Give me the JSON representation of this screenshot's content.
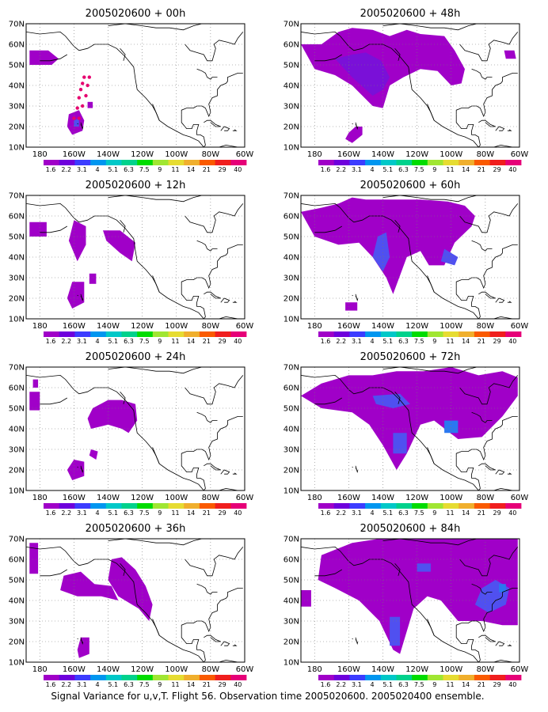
{
  "figure": {
    "caption": "Signal Variance for u,v,T. Flight 56. Observation time 2005020600. 2005020400 ensemble."
  },
  "axes": {
    "lon_ticks": [
      "180",
      "160W",
      "140W",
      "120W",
      "100W",
      "80W",
      "60W"
    ],
    "lat_ticks": [
      "70N",
      "60N",
      "50N",
      "40N",
      "30N",
      "20N",
      "10N"
    ],
    "lon_range": [
      -188,
      -60
    ],
    "lat_range": [
      10,
      70
    ],
    "grid": "dotted"
  },
  "colorbar": {
    "labels": [
      "1.6",
      "2.2",
      "3.1",
      "4",
      "5.1",
      "6.3",
      "7.5",
      "9",
      "11",
      "14",
      "21",
      "29",
      "40"
    ],
    "colors": [
      "#a000c8",
      "#6e00dc",
      "#3c3cff",
      "#0096f0",
      "#00c8c8",
      "#00d28c",
      "#00dc00",
      "#a0e632",
      "#e6dc32",
      "#f0af2d",
      "#fa5a00",
      "#f01e1e",
      "#e60078"
    ]
  },
  "panels": [
    {
      "title": "2005020600 + 00h",
      "regions": [
        {
          "level": 0,
          "lon": [
            -186,
            -175,
            -169,
            -173,
            -186
          ],
          "lat": [
            57,
            57,
            53,
            50,
            50
          ]
        },
        {
          "level": 0,
          "lon": [
            -163,
            -157,
            -154,
            -155,
            -161,
            -164
          ],
          "lat": [
            26,
            28,
            23,
            18,
            16,
            20
          ]
        },
        {
          "level": 2,
          "lon": [
            -160,
            -157,
            -157,
            -160
          ],
          "lat": [
            23,
            24,
            20,
            20
          ]
        },
        {
          "level": 0,
          "lon": [
            -152,
            -149,
            -149,
            -152
          ],
          "lat": [
            32,
            32,
            29,
            29
          ]
        }
      ],
      "tracks": [
        {
          "lon": [
            -160,
            -158,
            -157,
            -156,
            -155,
            -154
          ],
          "lat": [
            24,
            29,
            34,
            38,
            41,
            44
          ]
        },
        {
          "lon": [
            -157,
            -155,
            -153,
            -152,
            -151
          ],
          "lat": [
            24,
            30,
            35,
            40,
            44
          ]
        }
      ]
    },
    {
      "title": "2005020600 + 48h",
      "regions": [
        {
          "level": 0,
          "lon": [
            -188,
            -176,
            -166,
            -158,
            -146,
            -136,
            -126,
            -118,
            -104,
            -98,
            -92,
            -94,
            -100,
            -108,
            -118,
            -128,
            -136,
            -140,
            -146,
            -158,
            -168,
            -180
          ],
          "lat": [
            60,
            60,
            66,
            68,
            67,
            64,
            67,
            65,
            64,
            57,
            48,
            41,
            40,
            47,
            48,
            44,
            40,
            29,
            30,
            40,
            45,
            48
          ]
        },
        {
          "level": 1,
          "lon": [
            -168,
            -158,
            -150,
            -141,
            -136,
            -140,
            -146,
            -158
          ],
          "lat": [
            53,
            55,
            56,
            52,
            44,
            38,
            35,
            44
          ]
        },
        {
          "level": 0,
          "lon": [
            -156,
            -152,
            -152,
            -158,
            -162,
            -160
          ],
          "lat": [
            20,
            20,
            16,
            12,
            14,
            17
          ]
        },
        {
          "level": 0,
          "lon": [
            -69,
            -63,
            -62,
            -68
          ],
          "lat": [
            57,
            57,
            53,
            53
          ]
        }
      ],
      "tracks": []
    },
    {
      "title": "2005020600 + 12h",
      "regions": [
        {
          "level": 0,
          "lon": [
            -186,
            -176,
            -176,
            -186
          ],
          "lat": [
            57,
            57,
            50,
            50
          ]
        },
        {
          "level": 0,
          "lon": [
            -160,
            -153,
            -153,
            -158,
            -163
          ],
          "lat": [
            58,
            55,
            46,
            38,
            48
          ]
        },
        {
          "level": 0,
          "lon": [
            -143,
            -133,
            -124,
            -126,
            -133,
            -141
          ],
          "lat": [
            53,
            53,
            47,
            38,
            42,
            48
          ]
        },
        {
          "level": 0,
          "lon": [
            -161,
            -154,
            -154,
            -161,
            -164
          ],
          "lat": [
            28,
            28,
            18,
            15,
            20
          ]
        },
        {
          "level": 0,
          "lon": [
            -151,
            -147,
            -147,
            -151
          ],
          "lat": [
            32,
            32,
            27,
            27
          ]
        }
      ],
      "tracks": []
    },
    {
      "title": "2005020600 + 60h",
      "regions": [
        {
          "level": 0,
          "lon": [
            -188,
            -176,
            -166,
            -158,
            -150,
            -126,
            -118,
            -102,
            -92,
            -86,
            -88,
            -98,
            -104,
            -113,
            -118,
            -126,
            -134,
            -138,
            -146,
            -154,
            -166,
            -180
          ],
          "lat": [
            62,
            64,
            66,
            69,
            68,
            68,
            68,
            67,
            65,
            60,
            55,
            47,
            36,
            36,
            43,
            40,
            22,
            30,
            40,
            47,
            46,
            50
          ]
        },
        {
          "level": 2,
          "lon": [
            -143,
            -138,
            -136,
            -140,
            -146
          ],
          "lat": [
            50,
            52,
            40,
            33,
            40
          ]
        },
        {
          "level": 2,
          "lon": [
            -104,
            -96,
            -98,
            -106
          ],
          "lat": [
            44,
            40,
            36,
            38
          ]
        },
        {
          "level": 0,
          "lon": [
            -162,
            -155,
            -155,
            -162
          ],
          "lat": [
            18,
            18,
            14,
            14
          ]
        }
      ],
      "tracks": []
    },
    {
      "title": "2005020600 + 24h",
      "regions": [
        {
          "level": 0,
          "lon": [
            -186,
            -180,
            -180,
            -186
          ],
          "lat": [
            58,
            58,
            49,
            49
          ]
        },
        {
          "level": 0,
          "lon": [
            -184,
            -181,
            -181,
            -184
          ],
          "lat": [
            64,
            64,
            60,
            60
          ]
        },
        {
          "level": 0,
          "lon": [
            -149,
            -140,
            -132,
            -124,
            -123,
            -128,
            -132,
            -140,
            -150,
            -152
          ],
          "lat": [
            50,
            54,
            54,
            52,
            44,
            38,
            40,
            42,
            40,
            45
          ]
        },
        {
          "level": 0,
          "lon": [
            -160,
            -154,
            -154,
            -161,
            -164
          ],
          "lat": [
            25,
            24,
            17,
            15,
            20
          ]
        },
        {
          "level": 0,
          "lon": [
            -150,
            -146,
            -147,
            -151
          ],
          "lat": [
            30,
            29,
            25,
            27
          ]
        }
      ],
      "tracks": []
    },
    {
      "title": "2005020600 + 72h",
      "regions": [
        {
          "level": 0,
          "lon": [
            -188,
            -176,
            -160,
            -146,
            -132,
            -116,
            -100,
            -84,
            -70,
            -61,
            -61,
            -70,
            -82,
            -96,
            -110,
            -118,
            -126,
            -132,
            -140,
            -148,
            -158,
            -176
          ],
          "lat": [
            56,
            62,
            66,
            66,
            68,
            68,
            70,
            66,
            68,
            65,
            56,
            46,
            36,
            35,
            44,
            42,
            28,
            20,
            32,
            42,
            48,
            50
          ]
        },
        {
          "level": 2,
          "lon": [
            -146,
            -130,
            -124,
            -134,
            -144
          ],
          "lat": [
            56,
            57,
            52,
            50,
            52
          ]
        },
        {
          "level": 3,
          "lon": [
            -104,
            -96,
            -96,
            -104
          ],
          "lat": [
            44,
            44,
            38,
            38
          ]
        },
        {
          "level": 2,
          "lon": [
            -134,
            -126,
            -126,
            -134
          ],
          "lat": [
            38,
            38,
            28,
            28
          ]
        }
      ],
      "tracks": []
    },
    {
      "title": "2005020600 + 36h",
      "regions": [
        {
          "level": 0,
          "lon": [
            -186,
            -181,
            -181,
            -186
          ],
          "lat": [
            68,
            68,
            53,
            53
          ]
        },
        {
          "level": 0,
          "lon": [
            -166,
            -156,
            -148,
            -138,
            -134,
            -144,
            -158,
            -168
          ],
          "lat": [
            52,
            54,
            48,
            47,
            40,
            42,
            42,
            45
          ]
        },
        {
          "level": 0,
          "lon": [
            -138,
            -132,
            -124,
            -118,
            -114,
            -116,
            -122,
            -134,
            -140
          ],
          "lat": [
            60,
            61,
            55,
            47,
            38,
            30,
            36,
            42,
            50
          ]
        },
        {
          "level": 0,
          "lon": [
            -156,
            -151,
            -151,
            -157,
            -158
          ],
          "lat": [
            22,
            22,
            14,
            12,
            16
          ]
        }
      ],
      "tracks": []
    },
    {
      "title": "2005020600 + 84h",
      "regions": [
        {
          "level": 0,
          "lon": [
            -176,
            -158,
            -142,
            -126,
            -110,
            -92,
            -76,
            -61,
            -61,
            -70,
            -82,
            -96,
            -106,
            -114,
            -122,
            -130,
            -134,
            -142,
            -154,
            -168,
            -178
          ],
          "lat": [
            62,
            68,
            70,
            70,
            70,
            70,
            70,
            70,
            28,
            28,
            30,
            30,
            40,
            42,
            36,
            14,
            16,
            30,
            40,
            46,
            50
          ]
        },
        {
          "level": 0,
          "lon": [
            -188,
            -182,
            -182,
            -188
          ],
          "lat": [
            45,
            45,
            37,
            37
          ]
        },
        {
          "level": 2,
          "lon": [
            -82,
            -74,
            -66,
            -68,
            -78,
            -86
          ],
          "lat": [
            46,
            50,
            46,
            38,
            34,
            38
          ]
        },
        {
          "level": 3,
          "lon": [
            -72,
            -68,
            -68,
            -72
          ],
          "lat": [
            48,
            48,
            44,
            44
          ]
        },
        {
          "level": 2,
          "lon": [
            -136,
            -130,
            -130,
            -136
          ],
          "lat": [
            32,
            32,
            18,
            18
          ]
        },
        {
          "level": 2,
          "lon": [
            -120,
            -112,
            -112,
            -120
          ],
          "lat": [
            58,
            58,
            54,
            54
          ]
        }
      ],
      "tracks": []
    }
  ]
}
